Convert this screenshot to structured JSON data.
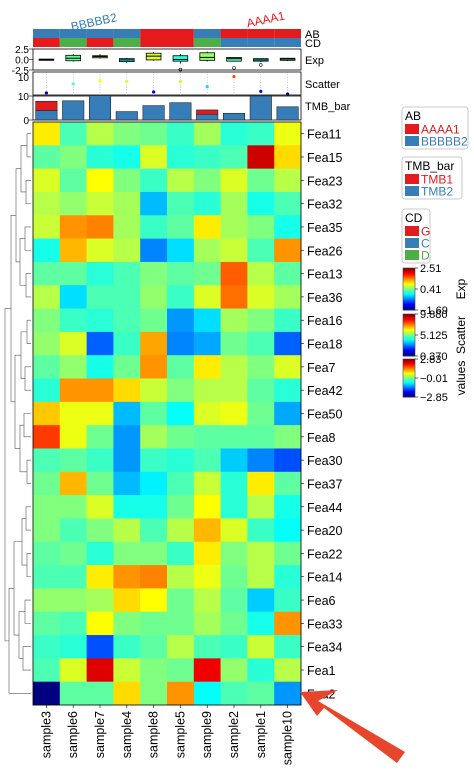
{
  "chart_data": {
    "type": "heatmap",
    "samples": [
      "sample3",
      "sample6",
      "sample7",
      "sample4",
      "sample8",
      "sample5",
      "sample9",
      "sample2",
      "sample1",
      "sample10"
    ],
    "features": [
      "Fea11",
      "Fea15",
      "Fea23",
      "Fea32",
      "Fea35",
      "Fea26",
      "Fea13",
      "Fea36",
      "Fea16",
      "Fea18",
      "Fea7",
      "Fea42",
      "Fea50",
      "Fea8",
      "Fea30",
      "Fea37",
      "Fea44",
      "Fea20",
      "Fea22",
      "Fea14",
      "Fea6",
      "Fea33",
      "Fea34",
      "Fea1",
      "Fea2"
    ],
    "values": [
      [
        0.8,
        -0.3,
        0.3,
        0.0,
        -0.1,
        -0.4,
        0.2,
        -0.5,
        -0.4,
        0.6
      ],
      [
        -0.2,
        0.0,
        -0.5,
        -0.6,
        0.5,
        -0.5,
        -0.4,
        -0.3,
        2.4,
        0.9
      ],
      [
        0.5,
        -0.2,
        0.7,
        0.0,
        -0.4,
        0.3,
        0.0,
        0.5,
        -0.1,
        0.3
      ],
      [
        0.3,
        0.1,
        0.4,
        0.2,
        -1.1,
        -0.3,
        -0.5,
        0.2,
        -0.6,
        -0.3
      ],
      [
        0.4,
        1.3,
        1.4,
        0.2,
        -0.4,
        -0.2,
        0.8,
        0.2,
        0.0,
        -0.6
      ],
      [
        -0.6,
        1.1,
        0.5,
        0.3,
        -1.4,
        -0.9,
        0.2,
        0.4,
        -0.3,
        1.3
      ],
      [
        -0.2,
        -0.2,
        -0.5,
        -0.3,
        0.0,
        -0.2,
        -0.1,
        1.6,
        0.3,
        -0.2
      ],
      [
        0.3,
        -0.9,
        -0.3,
        -0.3,
        0.1,
        -0.4,
        0.5,
        1.5,
        0.5,
        0.2
      ],
      [
        0.0,
        -0.4,
        -0.5,
        -0.3,
        -0.1,
        -1.3,
        -0.9,
        0.2,
        0.0,
        -0.4
      ],
      [
        0.1,
        0.5,
        -1.6,
        -0.4,
        1.2,
        -1.4,
        -1.2,
        -0.1,
        -0.3,
        -1.6
      ],
      [
        -0.2,
        0.1,
        -0.6,
        -0.1,
        1.3,
        -0.2,
        0.8,
        0.3,
        0.0,
        0.5
      ],
      [
        -0.5,
        1.3,
        1.3,
        0.9,
        0.4,
        0.0,
        0.3,
        0.3,
        -0.2,
        -0.5
      ],
      [
        1.0,
        0.6,
        0.6,
        -1.1,
        -0.2,
        -0.7,
        0.5,
        0.6,
        -0.1,
        -1.2
      ],
      [
        1.8,
        0.6,
        -0.1,
        -1.3,
        0.2,
        -0.1,
        -0.2,
        -0.2,
        -0.2,
        0.0
      ],
      [
        -0.3,
        -0.2,
        -0.4,
        -1.3,
        -0.4,
        -0.5,
        -0.3,
        -1.0,
        -1.4,
        -1.7
      ],
      [
        -0.1,
        1.1,
        -0.1,
        -1.1,
        -0.8,
        -0.3,
        0.4,
        -0.5,
        0.8,
        -0.2
      ],
      [
        0.0,
        0.0,
        0.5,
        -0.6,
        -0.6,
        -0.1,
        0.7,
        -0.5,
        0.3,
        -0.6
      ],
      [
        0.0,
        -0.3,
        0.0,
        0.3,
        -0.3,
        0.3,
        1.1,
        0.5,
        -0.4,
        -0.7
      ],
      [
        -0.2,
        -0.1,
        -0.5,
        0.0,
        0.0,
        -0.4,
        0.8,
        0.0,
        0.3,
        -0.1
      ],
      [
        -0.3,
        -0.3,
        0.8,
        1.3,
        1.4,
        0.3,
        0.6,
        -0.1,
        0.3,
        -0.5
      ],
      [
        0.1,
        0.1,
        0.2,
        0.9,
        0.7,
        -0.1,
        0.3,
        -0.2,
        -1.0,
        -0.4
      ],
      [
        -0.2,
        -0.3,
        0.7,
        0.0,
        -0.1,
        -0.1,
        0.2,
        -0.1,
        -0.6,
        1.3
      ],
      [
        -0.4,
        -0.5,
        -1.7,
        -0.4,
        -0.2,
        0.3,
        -0.3,
        -0.4,
        0.4,
        -0.4
      ],
      [
        -0.3,
        0.5,
        2.3,
        0.4,
        0.0,
        -0.1,
        2.2,
        0.1,
        -0.5,
        0.3
      ],
      [
        -2.9,
        -0.2,
        -0.2,
        0.9,
        0.0,
        1.3,
        -0.7,
        -0.3,
        -0.2,
        -1.3
      ]
    ],
    "annotations": {
      "AB": {
        "label": "AB",
        "values": [
          "BBBBB2",
          "BBBBB2",
          "BBBBB2",
          "BBBBB2",
          "AAAA1",
          "AAAA1",
          "BBBBB2",
          "AAAA1",
          "AAAA1",
          "AAAA1"
        ]
      },
      "CD": {
        "label": "CD",
        "values": [
          "G",
          "D",
          "G",
          "D",
          "G",
          "G",
          "D",
          "C",
          "C",
          "C"
        ]
      },
      "group_labels": {
        "AB": [
          "BBBBB2",
          "AAAA1"
        ],
        "CD": [
          "D",
          "G",
          "C"
        ]
      },
      "Exp": {
        "label": "Exp",
        "ticks": [
          "2.5",
          "0.0",
          "-2.5"
        ],
        "ylim": [
          -2.5,
          2.5
        ],
        "boxes": [
          {
            "q1": -0.2,
            "median": 0.0,
            "q3": 0.1,
            "min": -0.3,
            "max": 0.1
          },
          {
            "q1": -0.3,
            "median": 0.3,
            "q3": 1.0,
            "min": -0.5,
            "max": 1.3
          },
          {
            "q1": 0.4,
            "median": 0.7,
            "q3": 0.9,
            "min": 0.2,
            "max": 1.3
          },
          {
            "q1": -0.5,
            "median": -0.1,
            "q3": 0.2,
            "min": -0.8,
            "max": 0.4
          },
          {
            "q1": -0.1,
            "median": 0.8,
            "q3": 1.5,
            "min": -0.3,
            "max": 1.8
          },
          {
            "q1": -0.4,
            "median": 0.0,
            "q3": 0.9,
            "min": -1.0,
            "max": 1.3
          },
          {
            "q1": -0.2,
            "median": 0.5,
            "q3": 1.6,
            "min": -0.5,
            "max": 1.9
          },
          {
            "q1": -0.4,
            "median": 0.2,
            "q3": 0.5,
            "min": -0.5,
            "max": 0.6
          },
          {
            "q1": -0.4,
            "median": -0.1,
            "q3": 0.2,
            "min": -0.6,
            "max": 0.3
          },
          {
            "q1": -0.2,
            "median": 0.1,
            "q3": 0.3,
            "min": -0.4,
            "max": 0.4
          }
        ],
        "outliers": [
          [],
          [],
          [],
          [],
          [],
          [
            -2.4
          ],
          [],
          [
            -2.0
          ],
          [
            -1.3
          ],
          []
        ]
      },
      "Scatter": {
        "label": "Scatter",
        "values": [
          0.9,
          4.8,
          6.3,
          6.0,
          1.3,
          5.8,
          3.6,
          8.0,
          1.6,
          0.4
        ],
        "ylim": [
          0,
          10
        ]
      },
      "TMB_bar": {
        "label": "TMB_bar",
        "ticks": [
          "10",
          "0"
        ],
        "ylim": [
          0,
          10
        ],
        "TMB1": [
          3.8,
          0.0,
          0.0,
          0.0,
          0.0,
          0.0,
          1.8,
          0.0,
          0.0,
          0.0
        ],
        "TMB2": [
          4.0,
          8.0,
          10.2,
          3.5,
          6.0,
          7.2,
          2.4,
          2.8,
          10.0,
          5.5
        ]
      }
    },
    "legends": {
      "AB": {
        "title": "AB",
        "entries": [
          "AAAA1",
          "BBBBB2"
        ]
      },
      "TMB_bar": {
        "title": "TMB_bar",
        "entries": [
          "TMB1",
          "TMB2"
        ]
      },
      "CD": {
        "title": "CD",
        "entries": [
          "G",
          "C",
          "D"
        ]
      },
      "Exp": {
        "title": "Exp",
        "ticks": [
          "2.51",
          "0.41",
          "−1.69"
        ]
      },
      "Scatter": {
        "title": "Scatter",
        "ticks": [
          "9.880",
          "5.125",
          "0.370"
        ]
      },
      "values": {
        "title": "values",
        "ticks": [
          "2.83",
          "−0.01",
          "−2.85"
        ]
      }
    },
    "colors": {
      "AAAA1": "#e41a1c",
      "BBBBB2": "#377eb8",
      "G": "#e41a1c",
      "C": "#377eb8",
      "D": "#4daf4a",
      "TMB1": "#e41a1c",
      "TMB2": "#377eb8",
      "arrow": "#e8462c"
    },
    "scale": {
      "vmin": -2.85,
      "vmax": 2.83,
      "colormap": "jet"
    }
  }
}
